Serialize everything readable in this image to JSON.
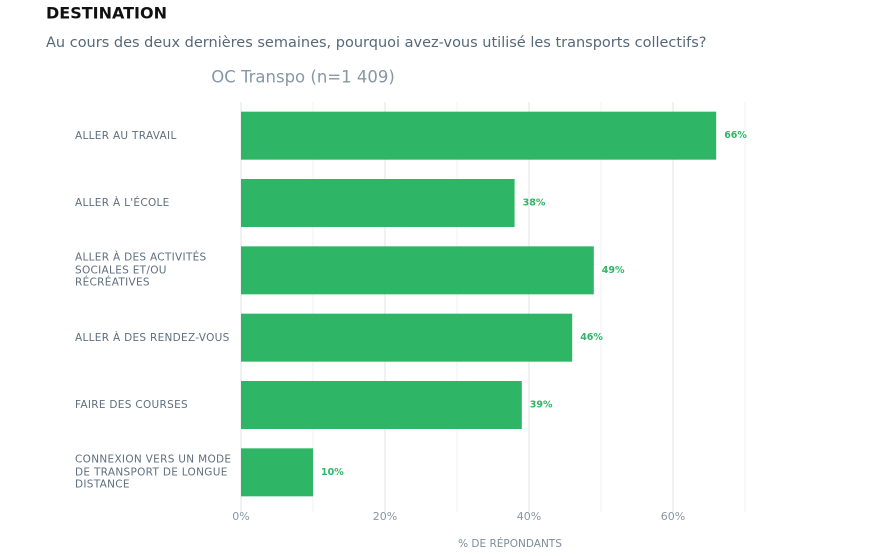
{
  "chart_data": {
    "type": "hbar",
    "heading": "DESTINATION",
    "subtitle": "Au cours des deux dernières semaines, pourquoi avez-vous utilisé les transports collectifs?",
    "title": "OC Transpo (n=1 409)",
    "x_label": "% DE RÉPONDANTS",
    "categories": [
      "ALLER AU TRAVAIL",
      "ALLER À L'ÉCOLE",
      "ALLER À DES ACTIVITÉS SOCIALES ET/OU RÉCRÉATIVES",
      "ALLER À DES RENDEZ-VOUS",
      "FAIRE DES COURSES",
      "CONNEXION VERS UN MODE DE TRANSPORT DE LONGUE DISTANCE"
    ],
    "values": [
      66,
      38,
      49,
      46,
      39,
      10
    ],
    "value_labels": [
      "66%",
      "38%",
      "49%",
      "46%",
      "39%",
      "10%"
    ],
    "color": "#2eb566",
    "xlim": [
      0,
      70
    ],
    "xticks": [
      {
        "value": 0,
        "label": "0%"
      },
      {
        "value": 20,
        "label": "20%"
      },
      {
        "value": 40,
        "label": "40%"
      },
      {
        "value": 60,
        "label": "60%"
      }
    ],
    "minor_grid": [
      10,
      30,
      50,
      70
    ],
    "grid": true
  }
}
